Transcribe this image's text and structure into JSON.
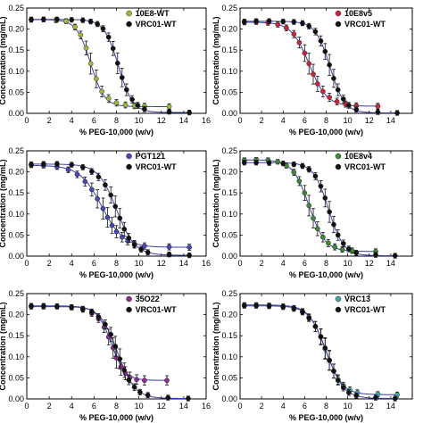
{
  "chart_data": [
    {
      "type": "scatter",
      "xlabel": "% PEG-10,000 (w/v)",
      "ylabel": "Concentration (mg/mL)",
      "xlim": [
        0,
        16
      ],
      "ylim": [
        0,
        0.25
      ],
      "xticks": [
        0,
        2,
        4,
        6,
        8,
        10,
        12,
        14,
        16
      ],
      "yticks": [
        0.0,
        0.05,
        0.1,
        0.15,
        0.2,
        0.25
      ],
      "x_shown": [
        0,
        2,
        4,
        6,
        8,
        10,
        12,
        14,
        16
      ],
      "legend_position": "top-right",
      "series": [
        {
          "name": "10E8-WT",
          "color": "#9bbb3c",
          "x": [
            0.4,
            1.5,
            2.6,
            3.5,
            4.3,
            4.8,
            5.3,
            5.7,
            6.2,
            6.7,
            7.3,
            8.0,
            8.8,
            9.6,
            10.5,
            12.7
          ],
          "y": [
            0.222,
            0.223,
            0.221,
            0.219,
            0.205,
            0.186,
            0.155,
            0.118,
            0.082,
            0.052,
            0.035,
            0.025,
            0.02,
            0.018,
            0.017,
            0.016
          ]
        },
        {
          "name": "VRC01-WT",
          "color": "#111111",
          "x": [
            0.4,
            1.5,
            2.7,
            4.0,
            5.0,
            5.7,
            6.3,
            6.8,
            7.3,
            7.7,
            8.1,
            8.5,
            8.9,
            9.4,
            9.9,
            10.5,
            12.7,
            14.5
          ],
          "y": [
            0.223,
            0.223,
            0.223,
            0.222,
            0.221,
            0.218,
            0.212,
            0.201,
            0.181,
            0.154,
            0.119,
            0.085,
            0.056,
            0.033,
            0.019,
            0.01,
            0.004,
            0.002
          ]
        }
      ]
    },
    {
      "type": "scatter",
      "xlabel": "% PEG-10,000 (w/v)",
      "ylabel": "Concentration (mg/mL)",
      "xlim": [
        0,
        16
      ],
      "ylim": [
        0,
        0.25
      ],
      "xticks": [
        0,
        2,
        4,
        6,
        8,
        10,
        12,
        14,
        16
      ],
      "yticks": [
        0.0,
        0.05,
        0.1,
        0.15,
        0.2,
        0.25
      ],
      "x_shown": [
        0,
        2,
        4,
        6,
        8,
        10,
        12,
        14
      ],
      "legend_position": "top-right",
      "series": [
        {
          "name": "10E8v5",
          "color": "#d0233a",
          "x": [
            0.4,
            1.5,
            2.6,
            3.5,
            4.3,
            5.0,
            5.5,
            6.0,
            6.4,
            6.8,
            7.2,
            7.7,
            8.3,
            9.0,
            9.8,
            10.8,
            12.8
          ],
          "y": [
            0.216,
            0.217,
            0.215,
            0.211,
            0.203,
            0.188,
            0.168,
            0.143,
            0.118,
            0.093,
            0.07,
            0.052,
            0.038,
            0.028,
            0.022,
            0.018,
            0.017
          ]
        },
        {
          "name": "VRC01-WT",
          "color": "#111111",
          "x": [
            0.4,
            1.5,
            2.7,
            4.0,
            5.0,
            5.8,
            6.4,
            7.0,
            7.5,
            7.9,
            8.3,
            8.7,
            9.1,
            9.6,
            10.1,
            10.8,
            12.8,
            14.6
          ],
          "y": [
            0.218,
            0.219,
            0.219,
            0.218,
            0.217,
            0.214,
            0.207,
            0.194,
            0.172,
            0.147,
            0.115,
            0.083,
            0.056,
            0.034,
            0.019,
            0.009,
            0.003,
            0.001
          ]
        }
      ]
    },
    {
      "type": "scatter",
      "xlabel": "% PEG-10,000 (w/v)",
      "ylabel": "Concentration (mg/mL)",
      "xlim": [
        0,
        16
      ],
      "ylim": [
        0,
        0.25
      ],
      "xticks": [
        0,
        2,
        4,
        6,
        8,
        10,
        12,
        14,
        16
      ],
      "yticks": [
        0.0,
        0.05,
        0.1,
        0.15,
        0.2,
        0.25
      ],
      "x_shown": [
        0,
        2,
        4,
        6,
        8,
        10,
        12,
        14,
        16
      ],
      "legend_position": "top-right",
      "series": [
        {
          "name": "PGT121",
          "color": "#4848b8",
          "x": [
            0.4,
            1.5,
            2.7,
            3.7,
            4.5,
            5.2,
            5.8,
            6.3,
            6.8,
            7.2,
            7.6,
            8.0,
            8.5,
            9.0,
            9.6,
            10.5,
            12.7,
            14.5
          ],
          "y": [
            0.216,
            0.215,
            0.212,
            0.205,
            0.194,
            0.177,
            0.158,
            0.136,
            0.113,
            0.092,
            0.073,
            0.058,
            0.045,
            0.036,
            0.029,
            0.024,
            0.022,
            0.021
          ]
        },
        {
          "name": "VRC01-WT",
          "color": "#111111",
          "x": [
            0.4,
            1.5,
            2.7,
            4.0,
            5.0,
            5.8,
            6.4,
            7.0,
            7.5,
            7.9,
            8.3,
            8.7,
            9.1,
            9.6,
            10.2,
            10.8,
            12.7,
            14.5
          ],
          "y": [
            0.218,
            0.219,
            0.219,
            0.217,
            0.211,
            0.201,
            0.188,
            0.169,
            0.145,
            0.118,
            0.09,
            0.064,
            0.043,
            0.027,
            0.016,
            0.009,
            0.004,
            0.002
          ]
        }
      ]
    },
    {
      "type": "scatter",
      "xlabel": "% PEG-10,000 (w/v)",
      "ylabel": "Concentration (mg/mL)",
      "xlim": [
        0,
        16
      ],
      "ylim": [
        0,
        0.25
      ],
      "xticks": [
        0,
        2,
        4,
        6,
        8,
        10,
        12,
        14,
        16
      ],
      "yticks": [
        0.0,
        0.05,
        0.1,
        0.15,
        0.2,
        0.25
      ],
      "x_shown": [
        0,
        2,
        4,
        6,
        8,
        10,
        12,
        14
      ],
      "legend_position": "top-right",
      "series": [
        {
          "name": "10E8v4",
          "color": "#3d8a38",
          "x": [
            0.4,
            1.5,
            2.6,
            3.5,
            4.3,
            5.0,
            5.5,
            6.0,
            6.4,
            6.8,
            7.2,
            7.7,
            8.2,
            8.8,
            9.5,
            10.4,
            12.6
          ],
          "y": [
            0.228,
            0.229,
            0.228,
            0.224,
            0.215,
            0.199,
            0.178,
            0.15,
            0.12,
            0.09,
            0.065,
            0.045,
            0.031,
            0.022,
            0.016,
            0.013,
            0.011
          ]
        },
        {
          "name": "VRC01-WT",
          "color": "#111111",
          "x": [
            0.4,
            1.5,
            2.7,
            4.0,
            5.0,
            5.8,
            6.4,
            7.0,
            7.5,
            7.9,
            8.3,
            8.7,
            9.1,
            9.6,
            10.1,
            10.8,
            12.6,
            14.4
          ],
          "y": [
            0.222,
            0.222,
            0.221,
            0.22,
            0.218,
            0.214,
            0.206,
            0.19,
            0.166,
            0.138,
            0.105,
            0.075,
            0.05,
            0.03,
            0.017,
            0.008,
            0.003,
            0.001
          ]
        }
      ]
    },
    {
      "type": "scatter",
      "xlabel": "% PEG-10,000 (w/v)",
      "ylabel": "Concentration (mg/mL)",
      "xlim": [
        0,
        16
      ],
      "ylim": [
        0,
        0.25
      ],
      "xticks": [
        0,
        2,
        4,
        6,
        8,
        10,
        12,
        14,
        16
      ],
      "yticks": [
        0.0,
        0.05,
        0.1,
        0.15,
        0.2,
        0.25
      ],
      "x_shown": [
        0,
        2,
        4,
        6,
        8,
        10,
        12,
        14,
        16
      ],
      "legend_position": "top-right",
      "series": [
        {
          "name": "35O22",
          "color": "#8a2f8e",
          "x": [
            0.4,
            1.5,
            2.7,
            4.0,
            5.0,
            5.8,
            6.4,
            6.9,
            7.3,
            7.7,
            8.0,
            8.4,
            8.8,
            9.2,
            9.8,
            10.5,
            12.5
          ],
          "y": [
            0.219,
            0.219,
            0.219,
            0.217,
            0.212,
            0.203,
            0.19,
            0.17,
            0.147,
            0.121,
            0.097,
            0.076,
            0.061,
            0.051,
            0.046,
            0.044,
            0.044
          ]
        },
        {
          "name": "VRC01-WT",
          "color": "#111111",
          "x": [
            0.4,
            1.5,
            2.7,
            4.0,
            5.0,
            5.8,
            6.4,
            7.0,
            7.5,
            7.9,
            8.3,
            8.7,
            9.1,
            9.6,
            10.1,
            10.8,
            12.6,
            14.4
          ],
          "y": [
            0.221,
            0.221,
            0.22,
            0.218,
            0.214,
            0.207,
            0.195,
            0.177,
            0.153,
            0.125,
            0.095,
            0.068,
            0.045,
            0.028,
            0.016,
            0.009,
            0.003,
            0.001
          ]
        }
      ]
    },
    {
      "type": "scatter",
      "xlabel": "% PEG-10,000 (w/v)",
      "ylabel": "Concentration (mg/mL)",
      "xlim": [
        0,
        16
      ],
      "ylim": [
        0,
        0.25
      ],
      "xticks": [
        0,
        2,
        4,
        6,
        8,
        10,
        12,
        14,
        16
      ],
      "yticks": [
        0.0,
        0.05,
        0.1,
        0.15,
        0.2,
        0.25
      ],
      "x_shown": [
        0,
        2,
        4,
        6,
        8,
        10,
        12,
        14
      ],
      "legend_position": "top-right",
      "series": [
        {
          "name": "VRC13",
          "color": "#3fa6a8",
          "x": [
            0.4,
            1.5,
            2.7,
            4.0,
            5.0,
            5.8,
            6.4,
            7.0,
            7.5,
            7.9,
            8.3,
            8.7,
            9.1,
            9.6,
            10.2,
            10.9,
            12.8,
            14.6
          ],
          "y": [
            0.223,
            0.223,
            0.222,
            0.22,
            0.216,
            0.208,
            0.194,
            0.172,
            0.147,
            0.119,
            0.091,
            0.066,
            0.046,
            0.031,
            0.021,
            0.015,
            0.011,
            0.01
          ]
        },
        {
          "name": "VRC01-WT",
          "color": "#111111",
          "x": [
            0.4,
            1.5,
            2.7,
            4.0,
            5.0,
            5.8,
            6.4,
            7.0,
            7.5,
            7.9,
            8.3,
            8.7,
            9.1,
            9.6,
            10.1,
            10.8,
            12.6,
            14.4
          ],
          "y": [
            0.221,
            0.221,
            0.22,
            0.218,
            0.214,
            0.206,
            0.192,
            0.172,
            0.148,
            0.121,
            0.092,
            0.066,
            0.044,
            0.027,
            0.015,
            0.008,
            0.003,
            0.001
          ]
        }
      ]
    }
  ]
}
